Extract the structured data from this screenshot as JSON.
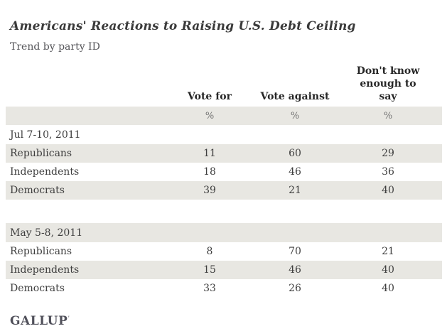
{
  "page": {
    "title": "Americans' Reactions to Raising U.S. Debt Ceiling",
    "subtitle": "Trend by party ID",
    "brand": "GALLUP",
    "brand_mark": "’",
    "colors": {
      "background": "#ffffff",
      "row_shading": "#e8e7e2",
      "title_text": "#3a3a3a",
      "body_text": "#3e3e3e",
      "muted_text": "#737373",
      "brand_text": "#50505a"
    }
  },
  "chart_data": {
    "type": "table",
    "title": "Americans' Reactions to Raising U.S. Debt Ceiling",
    "subtitle": "Trend by party ID",
    "columns": [
      "",
      "Vote for",
      "Vote against",
      "Don't know enough to say"
    ],
    "unit_row": [
      "",
      "%",
      "%",
      "%"
    ],
    "sections": [
      {
        "date": "Jul 7-10, 2011",
        "rows": [
          {
            "label": "Republicans",
            "values": [
              11,
              60,
              29
            ]
          },
          {
            "label": "Independents",
            "values": [
              18,
              46,
              36
            ]
          },
          {
            "label": "Democrats",
            "values": [
              39,
              21,
              40
            ]
          }
        ]
      },
      {
        "date": "May 5-8, 2011",
        "rows": [
          {
            "label": "Republicans",
            "values": [
              8,
              70,
              21
            ]
          },
          {
            "label": "Independents",
            "values": [
              15,
              46,
              40
            ]
          },
          {
            "label": "Democrats",
            "values": [
              33,
              26,
              40
            ]
          }
        ]
      }
    ],
    "source": "GALLUP"
  }
}
